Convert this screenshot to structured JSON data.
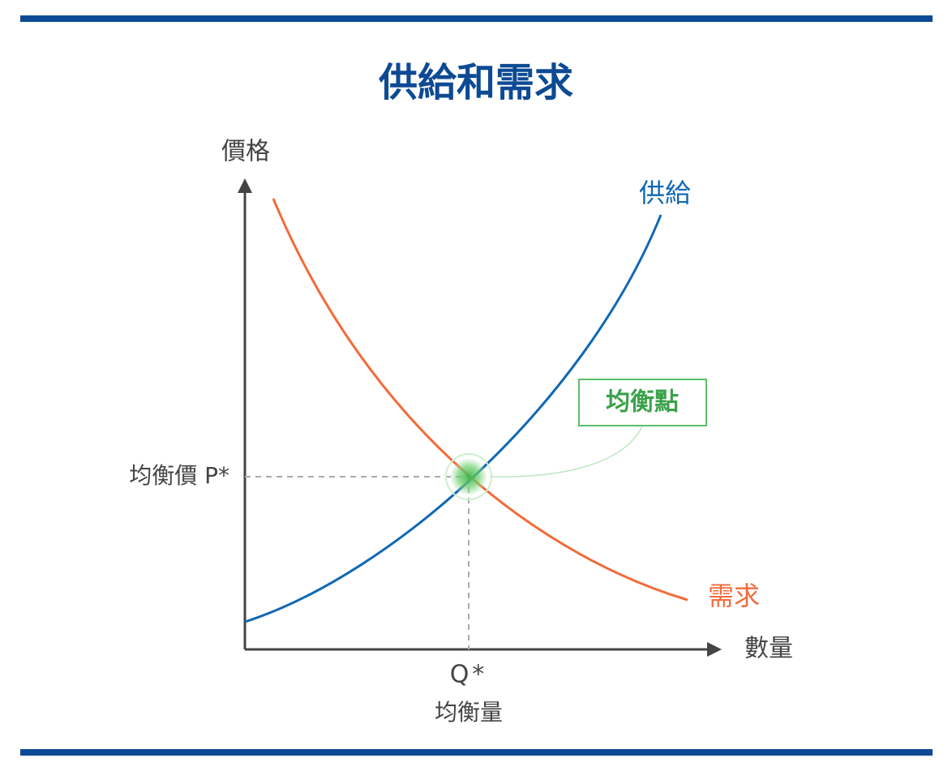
{
  "title": "供給和需求",
  "axes": {
    "y_label": "價格",
    "x_label": "數量"
  },
  "curves": {
    "supply": "供給",
    "demand": "需求"
  },
  "equilibrium": {
    "label": "均衡點",
    "price": "均衡價 P*",
    "quantity_symbol": "Q*",
    "quantity": "均衡量"
  }
}
